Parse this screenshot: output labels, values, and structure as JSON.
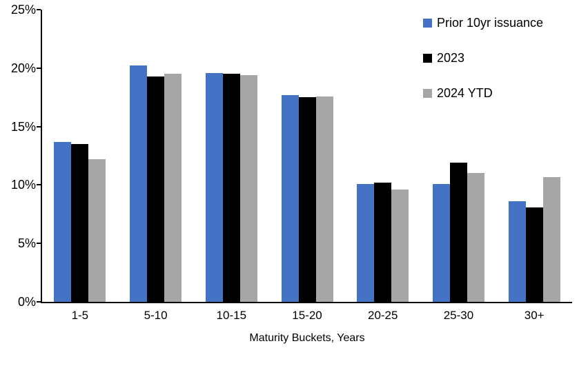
{
  "chart_data": {
    "type": "bar",
    "title": "",
    "xlabel": "Maturity Buckets, Years",
    "ylabel": "",
    "ylim": [
      0,
      25
    ],
    "ytick_step": 5,
    "ytick_labels": [
      "0%",
      "5%",
      "10%",
      "15%",
      "20%",
      "25%"
    ],
    "grid": false,
    "legend_position": "top-right-inside",
    "background_color": "#FFFFFF",
    "axis_color": "#000000",
    "categories": [
      "1-5",
      "5-10",
      "10-15",
      "15-20",
      "20-25",
      "25-30",
      "30+"
    ],
    "series": [
      {
        "name": "Prior 10yr issuance",
        "color": "#4472C4",
        "values": [
          13.7,
          20.2,
          19.6,
          17.7,
          10.1,
          10.1,
          8.6
        ]
      },
      {
        "name": "2023",
        "color": "#000000",
        "values": [
          13.5,
          19.3,
          19.5,
          17.5,
          10.2,
          11.9,
          8.1
        ]
      },
      {
        "name": "2024 YTD",
        "color": "#A6A6A6",
        "values": [
          12.2,
          19.5,
          19.4,
          17.6,
          9.6,
          11.0,
          10.7
        ]
      }
    ]
  }
}
